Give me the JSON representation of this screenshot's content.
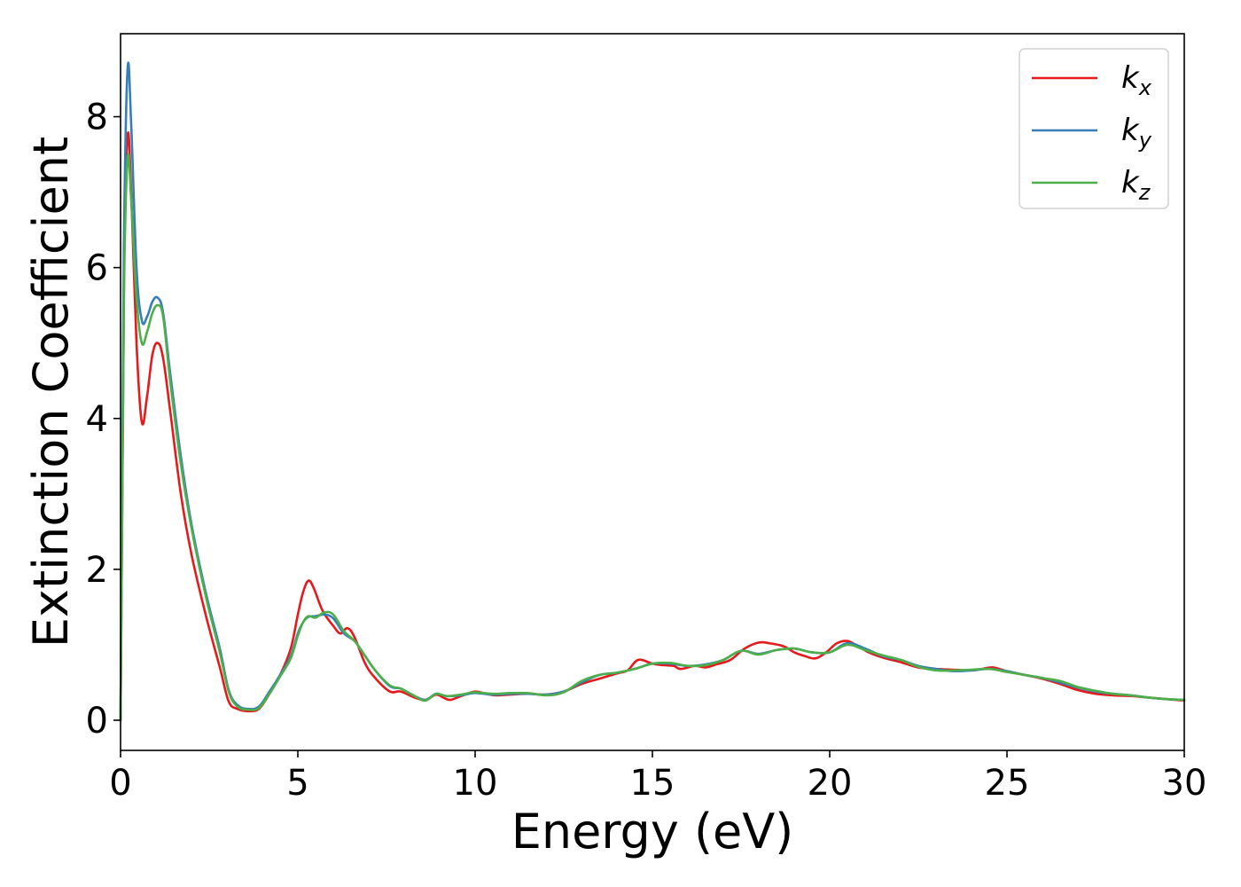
{
  "chart_data": {
    "type": "line",
    "xlabel": "Energy (eV)",
    "ylabel": "Extinction Coefficient",
    "xlim": [
      0,
      30
    ],
    "ylim": [
      -0.4,
      9.1
    ],
    "xticks": [
      0,
      5,
      10,
      15,
      20,
      25,
      30
    ],
    "yticks": [
      0,
      2,
      4,
      6,
      8
    ],
    "grid": false,
    "legend_position": "top-right",
    "series": [
      {
        "name": "k_x",
        "label_base": "k",
        "label_sub": "x",
        "color": "#e41a1c",
        "x": [
          0,
          0.05,
          0.1,
          0.2,
          0.3,
          0.45,
          0.6,
          0.75,
          0.9,
          1.05,
          1.2,
          1.4,
          1.7,
          2.0,
          2.4,
          2.8,
          3.05,
          3.3,
          3.6,
          3.9,
          4.2,
          4.5,
          4.8,
          5.0,
          5.15,
          5.3,
          5.45,
          5.7,
          6.0,
          6.2,
          6.4,
          6.6,
          6.9,
          7.2,
          7.6,
          7.9,
          8.3,
          8.6,
          8.9,
          9.1,
          9.3,
          9.6,
          10.0,
          10.3,
          10.6,
          11.0,
          11.5,
          12.0,
          12.5,
          13.0,
          13.5,
          14.0,
          14.3,
          14.6,
          15.0,
          15.3,
          15.6,
          15.8,
          16.2,
          16.5,
          16.8,
          17.2,
          17.6,
          18.0,
          18.3,
          18.7,
          19.0,
          19.3,
          19.6,
          19.9,
          20.2,
          20.5,
          20.8,
          21.1,
          21.5,
          22.0,
          22.5,
          23.0,
          23.5,
          24.0,
          24.3,
          24.6,
          25.0,
          25.5,
          26.0,
          26.5,
          27.0,
          27.5,
          28.0,
          28.5,
          29.0,
          29.5,
          30.0
        ],
        "y": [
          0.0,
          3.0,
          6.0,
          7.75,
          7.0,
          5.0,
          3.95,
          4.3,
          4.85,
          5.0,
          4.8,
          4.1,
          3.0,
          2.2,
          1.4,
          0.7,
          0.25,
          0.15,
          0.12,
          0.15,
          0.35,
          0.6,
          0.95,
          1.4,
          1.7,
          1.85,
          1.75,
          1.45,
          1.25,
          1.15,
          1.22,
          1.1,
          0.75,
          0.55,
          0.38,
          0.38,
          0.3,
          0.27,
          0.34,
          0.3,
          0.27,
          0.32,
          0.38,
          0.35,
          0.33,
          0.34,
          0.35,
          0.34,
          0.38,
          0.48,
          0.55,
          0.62,
          0.66,
          0.8,
          0.75,
          0.73,
          0.72,
          0.68,
          0.72,
          0.7,
          0.74,
          0.8,
          0.95,
          1.03,
          1.02,
          0.98,
          0.9,
          0.85,
          0.82,
          0.9,
          1.02,
          1.05,
          0.98,
          0.9,
          0.83,
          0.77,
          0.7,
          0.68,
          0.67,
          0.66,
          0.68,
          0.7,
          0.65,
          0.6,
          0.55,
          0.48,
          0.4,
          0.35,
          0.33,
          0.32,
          0.3,
          0.28,
          0.26
        ]
      },
      {
        "name": "k_y",
        "label_base": "k",
        "label_sub": "y",
        "color": "#377eb8",
        "x": [
          0,
          0.05,
          0.1,
          0.2,
          0.3,
          0.45,
          0.6,
          0.75,
          0.9,
          1.05,
          1.2,
          1.4,
          1.7,
          2.0,
          2.4,
          2.8,
          3.05,
          3.3,
          3.6,
          3.9,
          4.2,
          4.5,
          4.8,
          5.0,
          5.15,
          5.3,
          5.5,
          5.75,
          6.0,
          6.3,
          6.6,
          6.9,
          7.2,
          7.6,
          7.9,
          8.3,
          8.6,
          8.9,
          9.2,
          9.6,
          10.0,
          10.5,
          11.0,
          11.5,
          12.0,
          12.5,
          13.0,
          13.5,
          14.0,
          14.5,
          15.0,
          15.5,
          16.0,
          16.5,
          17.0,
          17.5,
          18.0,
          18.5,
          19.0,
          19.5,
          20.0,
          20.5,
          21.0,
          21.5,
          22.0,
          22.5,
          23.0,
          23.5,
          24.0,
          24.5,
          25.0,
          25.5,
          26.0,
          26.5,
          27.0,
          27.5,
          28.0,
          28.5,
          29.0,
          29.5,
          30.0
        ],
        "y": [
          0.0,
          3.5,
          6.5,
          8.65,
          7.9,
          6.0,
          5.3,
          5.35,
          5.55,
          5.6,
          5.4,
          4.6,
          3.5,
          2.6,
          1.7,
          0.95,
          0.4,
          0.2,
          0.15,
          0.18,
          0.38,
          0.6,
          0.85,
          1.15,
          1.3,
          1.37,
          1.38,
          1.4,
          1.35,
          1.15,
          1.05,
          0.85,
          0.65,
          0.45,
          0.42,
          0.32,
          0.27,
          0.35,
          0.32,
          0.33,
          0.36,
          0.34,
          0.35,
          0.35,
          0.34,
          0.38,
          0.5,
          0.6,
          0.63,
          0.68,
          0.75,
          0.75,
          0.72,
          0.74,
          0.8,
          0.92,
          0.88,
          0.93,
          0.95,
          0.9,
          0.9,
          1.02,
          0.95,
          0.85,
          0.8,
          0.72,
          0.68,
          0.65,
          0.66,
          0.68,
          0.65,
          0.6,
          0.56,
          0.5,
          0.43,
          0.38,
          0.35,
          0.33,
          0.3,
          0.28,
          0.27
        ]
      },
      {
        "name": "k_z",
        "label_base": "k",
        "label_sub": "z",
        "color": "#4daf4a",
        "x": [
          0,
          0.05,
          0.1,
          0.2,
          0.3,
          0.45,
          0.6,
          0.75,
          0.9,
          1.05,
          1.2,
          1.4,
          1.7,
          2.0,
          2.4,
          2.8,
          3.05,
          3.3,
          3.6,
          3.9,
          4.2,
          4.5,
          4.8,
          5.0,
          5.15,
          5.3,
          5.5,
          5.75,
          6.0,
          6.3,
          6.6,
          6.9,
          7.2,
          7.6,
          7.9,
          8.3,
          8.6,
          8.9,
          9.2,
          9.6,
          10.0,
          10.5,
          11.0,
          11.5,
          12.0,
          12.5,
          13.0,
          13.5,
          14.0,
          14.5,
          15.0,
          15.5,
          16.0,
          16.5,
          17.0,
          17.5,
          18.0,
          18.5,
          19.0,
          19.5,
          20.0,
          20.5,
          21.0,
          21.5,
          22.0,
          22.5,
          23.0,
          23.5,
          24.0,
          24.5,
          25.0,
          25.5,
          26.0,
          26.5,
          27.0,
          27.5,
          28.0,
          28.5,
          29.0,
          29.5,
          30.0
        ],
        "y": [
          0.0,
          3.0,
          5.8,
          7.45,
          6.9,
          5.6,
          5.0,
          5.15,
          5.4,
          5.5,
          5.35,
          4.5,
          3.4,
          2.55,
          1.65,
          0.9,
          0.38,
          0.18,
          0.14,
          0.16,
          0.35,
          0.58,
          0.82,
          1.12,
          1.3,
          1.38,
          1.36,
          1.43,
          1.4,
          1.18,
          1.05,
          0.85,
          0.65,
          0.46,
          0.42,
          0.32,
          0.26,
          0.35,
          0.32,
          0.34,
          0.37,
          0.35,
          0.36,
          0.36,
          0.33,
          0.37,
          0.52,
          0.6,
          0.63,
          0.68,
          0.75,
          0.76,
          0.72,
          0.73,
          0.8,
          0.92,
          0.87,
          0.93,
          0.95,
          0.9,
          0.9,
          1.0,
          0.93,
          0.86,
          0.8,
          0.71,
          0.66,
          0.66,
          0.67,
          0.68,
          0.64,
          0.6,
          0.56,
          0.52,
          0.44,
          0.39,
          0.35,
          0.33,
          0.3,
          0.28,
          0.27
        ]
      }
    ]
  }
}
